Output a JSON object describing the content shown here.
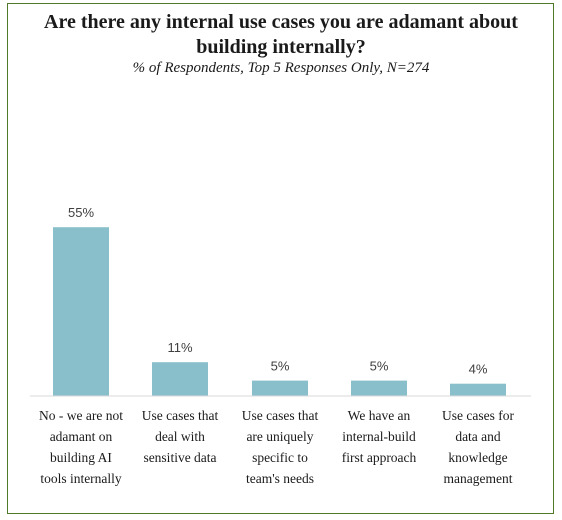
{
  "chart_data": {
    "type": "bar",
    "title": "Are there any internal use cases you are adamant about building internally?",
    "subtitle": "% of Respondents, Top 5 Responses Only, N=274",
    "categories": [
      "No - we are not adamant on building AI tools internally",
      "Use cases that deal with sensitive data",
      "Use cases that are uniquely specific to team's needs",
      "We have an internal-build first approach",
      "Use cases for data and knowledge management"
    ],
    "category_lines": [
      [
        "No - we are not",
        "adamant on",
        "building AI",
        "tools internally"
      ],
      [
        "Use cases that",
        "deal with",
        "sensitive data"
      ],
      [
        "Use cases that",
        "are uniquely",
        "specific to",
        "team's needs"
      ],
      [
        "We have an",
        "internal-build",
        "first approach"
      ],
      [
        "Use cases for",
        "data and",
        "knowledge",
        "management"
      ]
    ],
    "values": [
      55,
      11,
      5,
      5,
      4
    ],
    "value_labels": [
      "55%",
      "11%",
      "5%",
      "5%",
      "4%"
    ],
    "ylim": [
      0,
      60
    ],
    "grid": false,
    "legend": "none",
    "colors": {
      "bar": "#89bfcb",
      "frame": "#4f7a2a"
    }
  }
}
